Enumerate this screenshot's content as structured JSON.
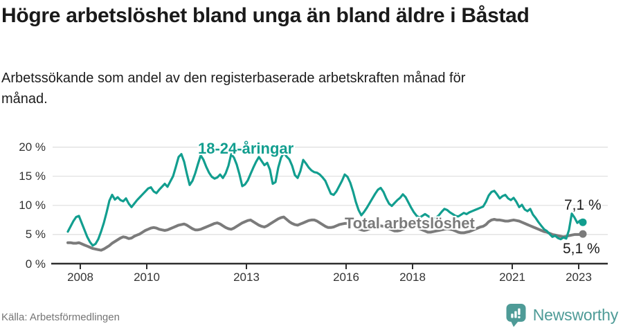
{
  "header": {
    "title": "Högre arbetslöshet bland unga än bland äldre i Båstad",
    "subtitle": "Arbetssökande som andel av den registerbaserade arbetskraften månad för månad."
  },
  "footer": {
    "source": "Källa: Arbetsförmedlingen",
    "brand": "Newsworthy",
    "brand_icon": "speech-bubble-bar-chart-exclamation"
  },
  "colors": {
    "teal": "#129E8F",
    "gray": "#7B7B7B",
    "grid": "#DEDEDE",
    "axis": "#2E2E2E",
    "text": "#1A1A1A",
    "muted": "#757575",
    "brand_teal": "#4E9B97"
  },
  "chart_data": {
    "type": "line",
    "title": "Högre arbetslöshet bland unga än bland äldre i Båstad",
    "subtitle": "Arbetssökande som andel av den registerbaserade arbetskraften månad för månad.",
    "frequency": "monthly",
    "x_start": "2007-08",
    "x_end": "2023-02",
    "x_ticks": [
      2008,
      2010,
      2013,
      2016,
      2018,
      2021,
      2023
    ],
    "x_tick_labels": [
      "2008",
      "2010",
      "2013",
      "2016",
      "2018",
      "2021",
      "2023"
    ],
    "y_ticks": [
      0,
      5,
      10,
      15,
      20
    ],
    "y_tick_labels": [
      "0 %",
      "5 %",
      "10 %",
      "15 %",
      "20 %"
    ],
    "ylim": [
      0,
      21
    ],
    "grid": "horizontal",
    "legend_position": "inline-labels",
    "series": [
      {
        "name": "18-24-åringar",
        "color": "#129E8F",
        "end_value": 7.1,
        "end_label": "7,1 %",
        "values": [
          5.5,
          6.4,
          7.3,
          8.0,
          8.2,
          7.0,
          5.8,
          4.6,
          3.7,
          3.1,
          3.4,
          4.2,
          5.5,
          7.0,
          8.8,
          10.8,
          11.8,
          11.0,
          11.4,
          10.9,
          10.7,
          11.2,
          10.3,
          9.7,
          10.3,
          10.9,
          11.4,
          11.9,
          12.4,
          12.9,
          13.1,
          12.4,
          12.1,
          12.7,
          13.2,
          13.7,
          13.2,
          14.1,
          15.0,
          16.6,
          18.3,
          18.8,
          17.5,
          15.4,
          13.5,
          14.2,
          15.5,
          17.1,
          18.6,
          17.8,
          16.6,
          15.6,
          14.9,
          14.6,
          14.8,
          15.3,
          14.7,
          15.5,
          16.8,
          18.8,
          18.2,
          17.0,
          15.3,
          13.3,
          13.6,
          14.3,
          15.4,
          16.5,
          17.5,
          18.3,
          17.6,
          16.9,
          17.3,
          16.1,
          13.7,
          14.0,
          16.5,
          18.2,
          19.0,
          18.4,
          17.9,
          16.8,
          15.2,
          14.7,
          15.9,
          17.8,
          17.2,
          16.5,
          16.0,
          15.7,
          15.6,
          15.3,
          14.8,
          14.2,
          13.1,
          12.0,
          11.8,
          12.4,
          13.3,
          14.2,
          15.3,
          14.9,
          13.9,
          12.4,
          10.6,
          9.2,
          8.3,
          8.9,
          9.6,
          10.4,
          11.2,
          12.0,
          12.7,
          13.0,
          12.3,
          11.2,
          10.3,
          9.9,
          10.4,
          10.9,
          11.3,
          11.9,
          11.4,
          10.5,
          9.6,
          8.8,
          8.2,
          7.9,
          8.2,
          8.5,
          8.2,
          7.9,
          7.7,
          7.9,
          8.3,
          8.9,
          9.4,
          9.2,
          8.8,
          8.5,
          8.2,
          8.1,
          8.4,
          8.7,
          8.5,
          8.8,
          9.0,
          9.2,
          9.4,
          9.6,
          9.8,
          10.6,
          11.7,
          12.3,
          12.5,
          11.9,
          11.2,
          11.6,
          11.8,
          11.2,
          10.9,
          11.3,
          10.6,
          9.7,
          10.1,
          9.3,
          9.0,
          9.4,
          8.4,
          7.8,
          7.1,
          6.5,
          5.9,
          5.6,
          5.1,
          4.6,
          4.8,
          4.4,
          4.2,
          4.5,
          4.3,
          5.8,
          8.6,
          7.9,
          7.0,
          7.4,
          7.1
        ]
      },
      {
        "name": "Total arbetslöshet",
        "color": "#7B7B7B",
        "end_value": 5.1,
        "end_label": "5,1 %",
        "values": [
          3.6,
          3.6,
          3.5,
          3.5,
          3.6,
          3.4,
          3.2,
          3.0,
          2.8,
          2.6,
          2.5,
          2.4,
          2.3,
          2.5,
          2.8,
          3.1,
          3.5,
          3.8,
          4.1,
          4.4,
          4.6,
          4.5,
          4.3,
          4.4,
          4.7,
          4.9,
          5.1,
          5.4,
          5.7,
          5.9,
          6.1,
          6.2,
          6.1,
          5.9,
          5.8,
          5.7,
          5.8,
          6.0,
          6.2,
          6.4,
          6.6,
          6.7,
          6.8,
          6.6,
          6.3,
          6.0,
          5.8,
          5.8,
          5.9,
          6.1,
          6.3,
          6.5,
          6.7,
          6.9,
          7.0,
          6.8,
          6.5,
          6.2,
          6.0,
          5.9,
          6.1,
          6.4,
          6.7,
          7.0,
          7.2,
          7.4,
          7.5,
          7.2,
          6.9,
          6.6,
          6.4,
          6.3,
          6.5,
          6.8,
          7.1,
          7.4,
          7.7,
          7.9,
          8.0,
          7.6,
          7.2,
          6.9,
          6.7,
          6.6,
          6.8,
          7.0,
          7.2,
          7.4,
          7.5,
          7.5,
          7.3,
          7.0,
          6.7,
          6.4,
          6.2,
          6.2,
          6.3,
          6.5,
          6.7,
          6.8,
          6.9,
          6.9,
          6.8,
          6.6,
          6.3,
          6.0,
          5.8,
          5.7,
          5.8,
          6.0,
          6.2,
          6.3,
          6.4,
          6.5,
          6.4,
          6.2,
          6.0,
          5.8,
          5.6,
          5.6,
          5.7,
          5.9,
          6.1,
          6.2,
          6.3,
          6.3,
          6.2,
          6.0,
          5.8,
          5.6,
          5.4,
          5.4,
          5.5,
          5.6,
          5.7,
          5.8,
          5.9,
          6.0,
          5.9,
          5.8,
          5.6,
          5.4,
          5.3,
          5.3,
          5.4,
          5.5,
          5.7,
          5.9,
          6.1,
          6.3,
          6.4,
          6.7,
          7.2,
          7.5,
          7.6,
          7.5,
          7.5,
          7.4,
          7.3,
          7.3,
          7.4,
          7.5,
          7.4,
          7.3,
          7.1,
          6.9,
          6.7,
          6.5,
          6.3,
          6.1,
          5.9,
          5.7,
          5.5,
          5.4,
          5.2,
          5.0,
          4.9,
          4.8,
          4.7,
          4.6,
          4.7,
          4.8,
          4.9,
          5.0,
          5.0,
          5.0,
          5.1
        ]
      }
    ]
  }
}
